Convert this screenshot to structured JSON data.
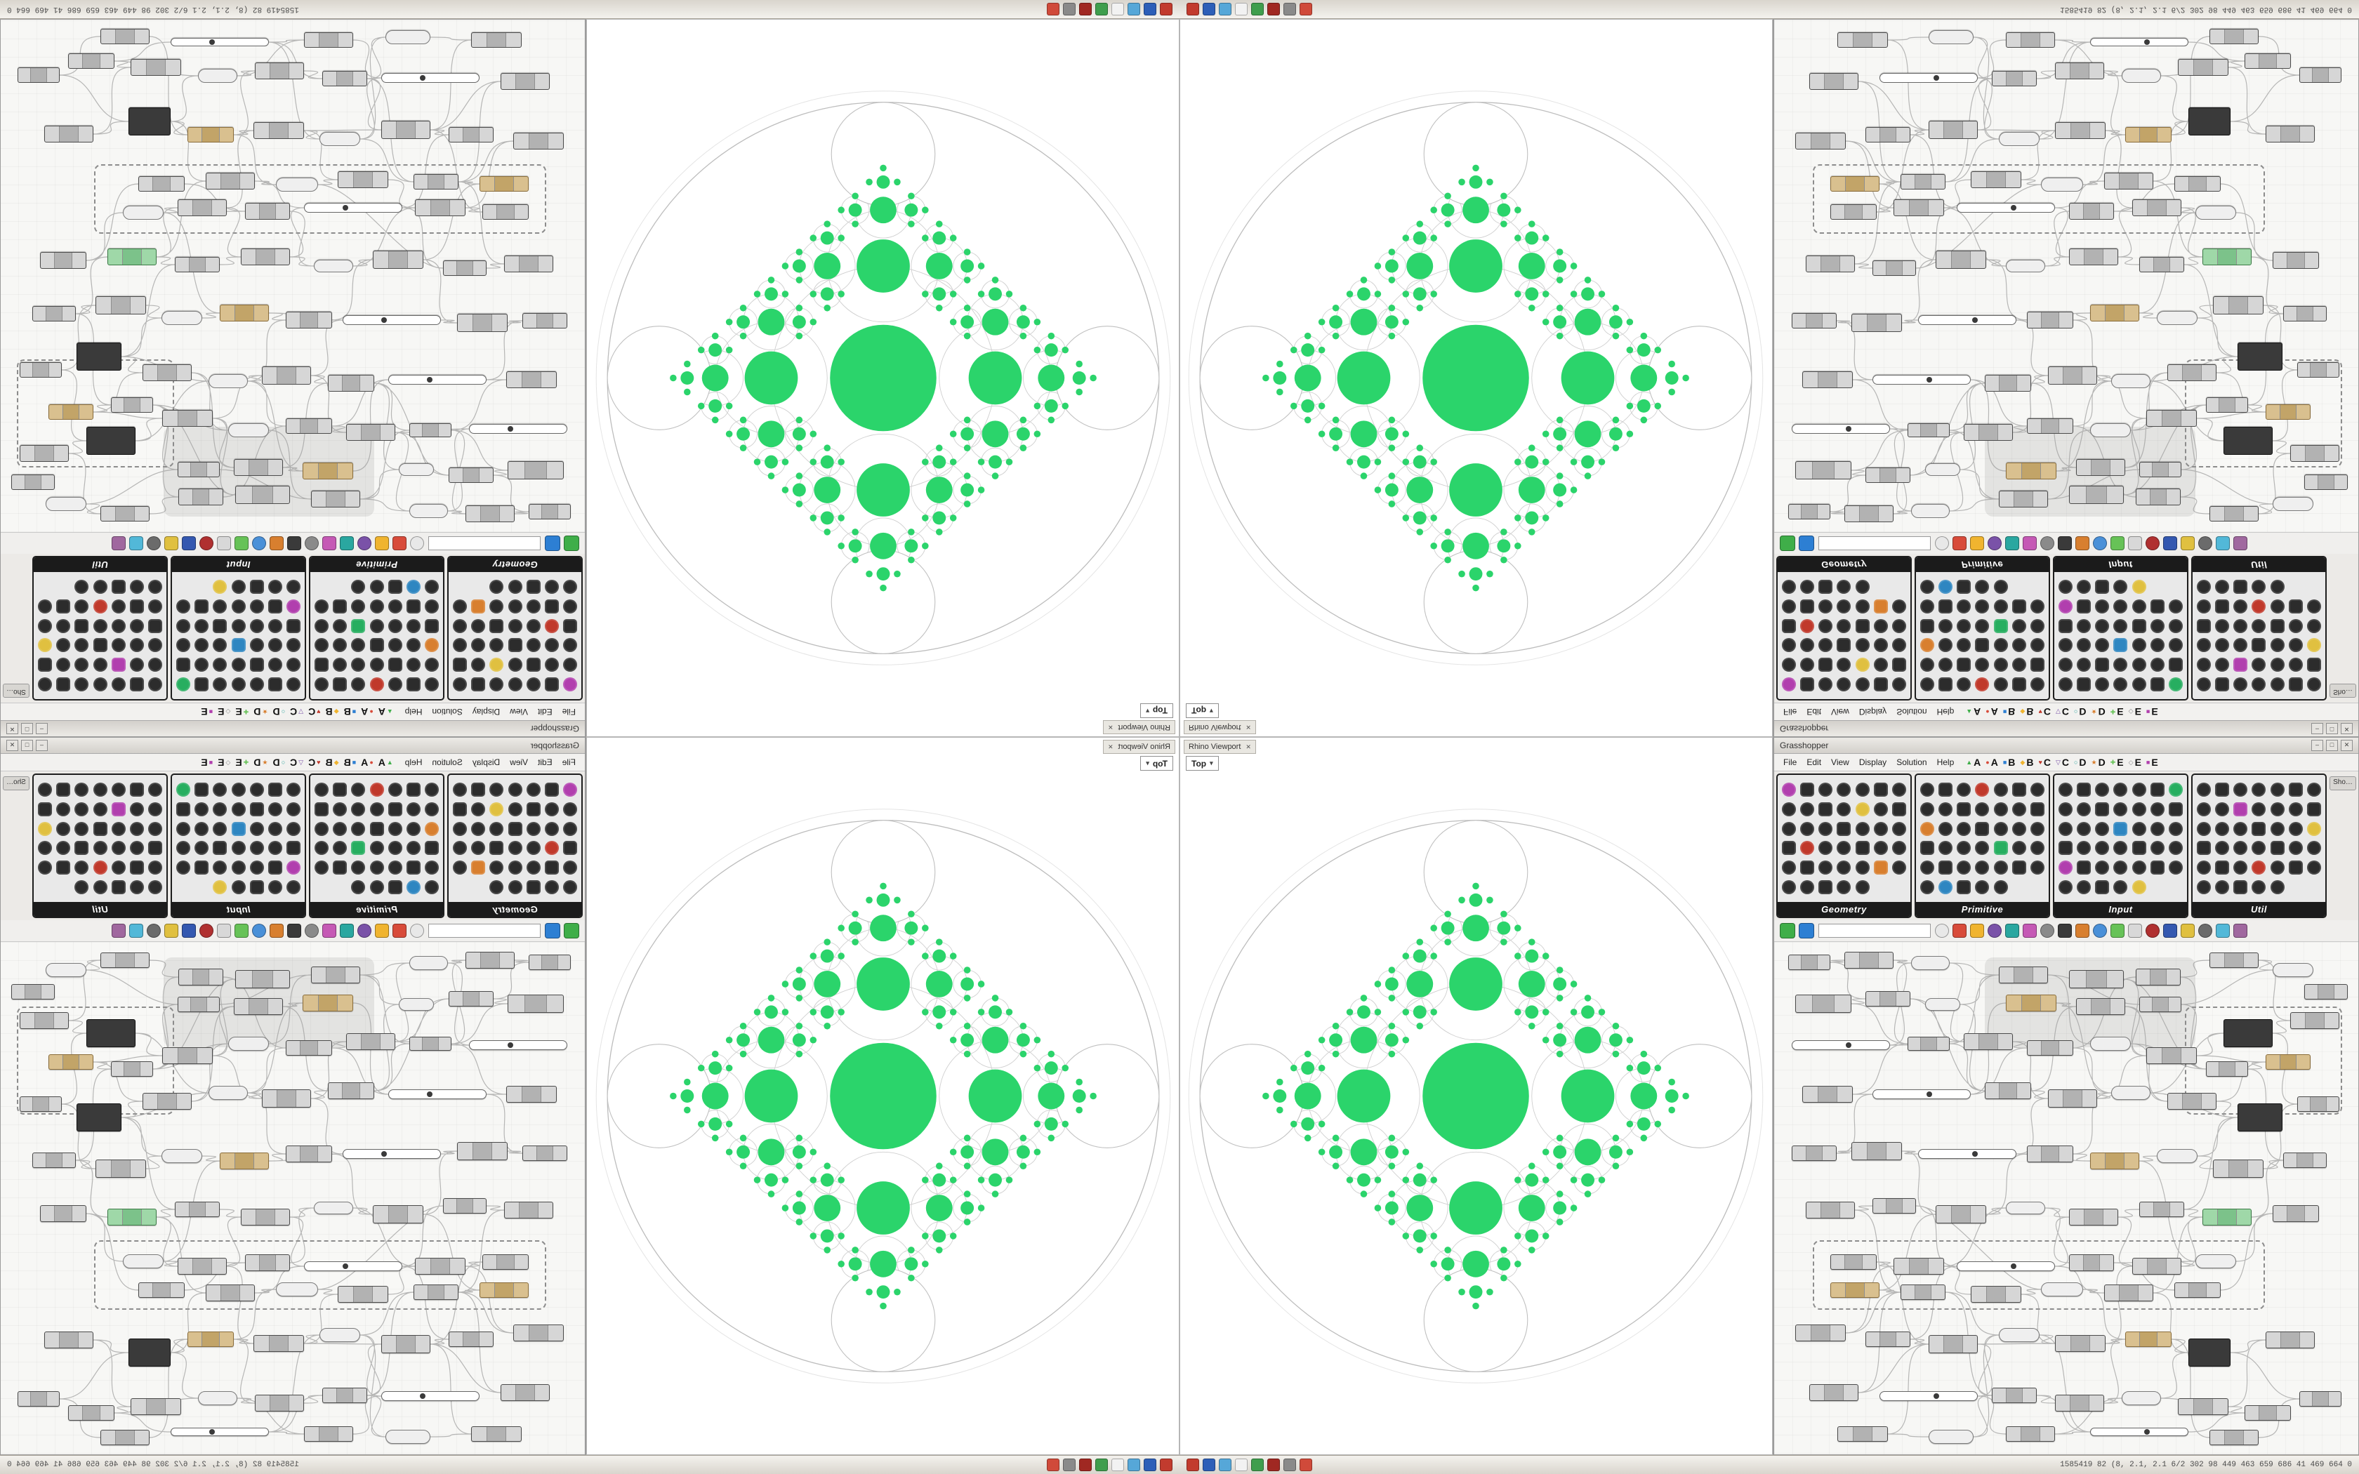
{
  "colors": {
    "fractal_green": "#2bd46b",
    "circle_stroke": "#cfcfcf",
    "toolbar_green": "#3fae49",
    "toolbar_blue": "#2d7fd3"
  },
  "status_bar": {
    "text": "1585419 82  (8, 2.1, 2.1  6/2  302 98 449 463 659 686 41 469 664 0",
    "icons": [
      {
        "name": "taskbar-icon-red",
        "color": "#c23b2e"
      },
      {
        "name": "taskbar-icon-blue",
        "color": "#2d5fb8"
      },
      {
        "name": "taskbar-icon-lightblue",
        "color": "#56a7d8"
      },
      {
        "name": "taskbar-icon-white",
        "color": "#f2f2f2"
      },
      {
        "name": "taskbar-icon-green",
        "color": "#3f9e4d"
      },
      {
        "name": "taskbar-icon-darkred",
        "color": "#a02822"
      },
      {
        "name": "taskbar-icon-gray",
        "color": "#8a8a8a"
      },
      {
        "name": "taskbar-icon-red2",
        "color": "#d04a3a"
      }
    ]
  },
  "viewport": {
    "panel_title": "Rhino Viewport",
    "view_label": "Top",
    "close_glyph": "✕",
    "dropdown_glyph": "▾"
  },
  "gh": {
    "window_title": "Grasshopper",
    "window_controls": [
      "–",
      "□",
      "✕"
    ],
    "menu": [
      "File",
      "Edit",
      "View",
      "Display",
      "Solution",
      "Help"
    ],
    "tabs": [
      {
        "glyph": "▲",
        "letter": "A",
        "color": "#3fae49"
      },
      {
        "glyph": "●",
        "letter": "A",
        "color": "#d84b3a"
      },
      {
        "glyph": "■",
        "letter": "B",
        "color": "#2d7fd3"
      },
      {
        "glyph": "◆",
        "letter": "B",
        "color": "#f0b42f"
      },
      {
        "glyph": "♥",
        "letter": "C",
        "color": "#c0392b"
      },
      {
        "glyph": "▽",
        "letter": "C",
        "color": "#7a52a8"
      },
      {
        "glyph": "○",
        "letter": "D",
        "color": "#2aa7a0"
      },
      {
        "glyph": "★",
        "letter": "D",
        "color": "#d87f2f"
      },
      {
        "glyph": "✚",
        "letter": "E",
        "color": "#67c257"
      },
      {
        "glyph": "◇",
        "letter": "E",
        "color": "#8a8a8a"
      },
      {
        "glyph": "■",
        "letter": "E",
        "color": "#b13fae"
      }
    ],
    "palette_groups": [
      {
        "label": "Geometry"
      },
      {
        "label": "Primitive"
      },
      {
        "label": "Input"
      },
      {
        "label": "Util"
      }
    ],
    "overflow_tab": "Sho…",
    "toolbar": {
      "search_placeholder": ""
    }
  }
}
